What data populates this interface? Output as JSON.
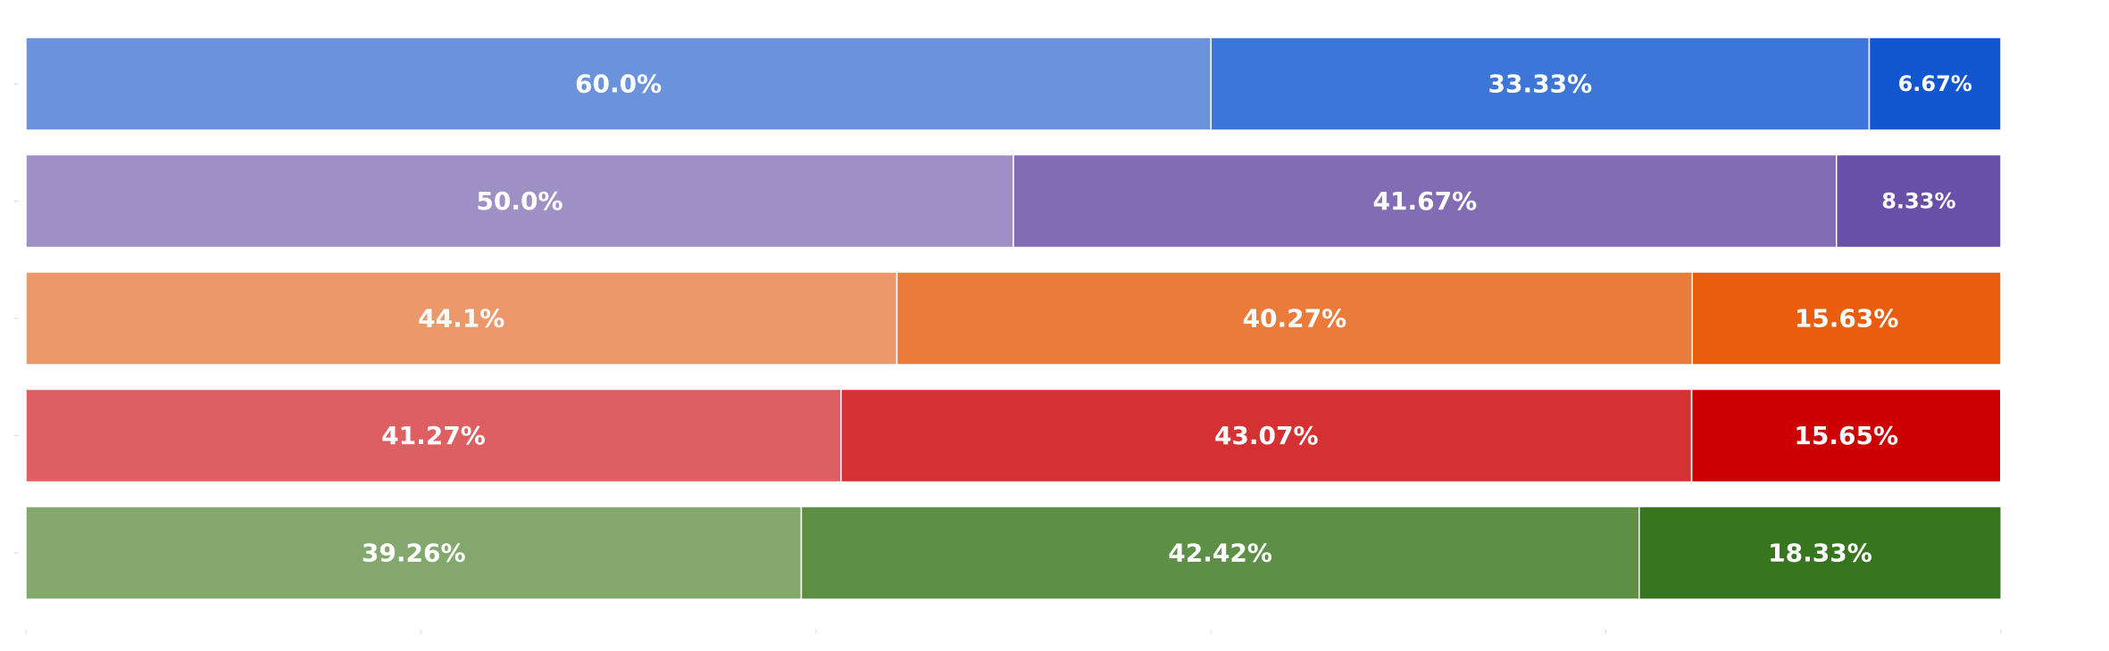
{
  "chart_data": {
    "type": "bar",
    "orientation": "horizontal",
    "stacked": true,
    "normalized": true,
    "xlim": [
      0,
      100
    ],
    "grid": false,
    "legend": "none",
    "title": "",
    "xlabel": "",
    "ylabel": "",
    "rows": [
      {
        "values": [
          60.0,
          33.33,
          6.67
        ],
        "labels": [
          "60.0%",
          "33.33%",
          "6.67%"
        ],
        "colors": [
          "#6a93dc",
          "#3d76d6",
          "#1257cf"
        ]
      },
      {
        "values": [
          50.0,
          41.67,
          8.33
        ],
        "labels": [
          "50.0%",
          "41.67%",
          "8.33%"
        ],
        "colors": [
          "#9e90c5",
          "#826cb4",
          "#6a4fa9"
        ]
      },
      {
        "values": [
          44.1,
          40.27,
          15.63
        ],
        "labels": [
          "44.1%",
          "40.27%",
          "15.63%"
        ],
        "colors": [
          "#ec986a",
          "#eb7b3b",
          "#e95d0f"
        ]
      },
      {
        "values": [
          41.27,
          43.07,
          15.65
        ],
        "labels": [
          "41.27%",
          "43.07%",
          "15.65%"
        ],
        "colors": [
          "#de5f61",
          "#d53032",
          "#cc0000"
        ]
      },
      {
        "values": [
          39.26,
          42.42,
          18.33
        ],
        "labels": [
          "39.26%",
          "42.42%",
          "18.33%"
        ],
        "colors": [
          "#82a86e",
          "#5d9046",
          "#38751f"
        ]
      }
    ]
  }
}
